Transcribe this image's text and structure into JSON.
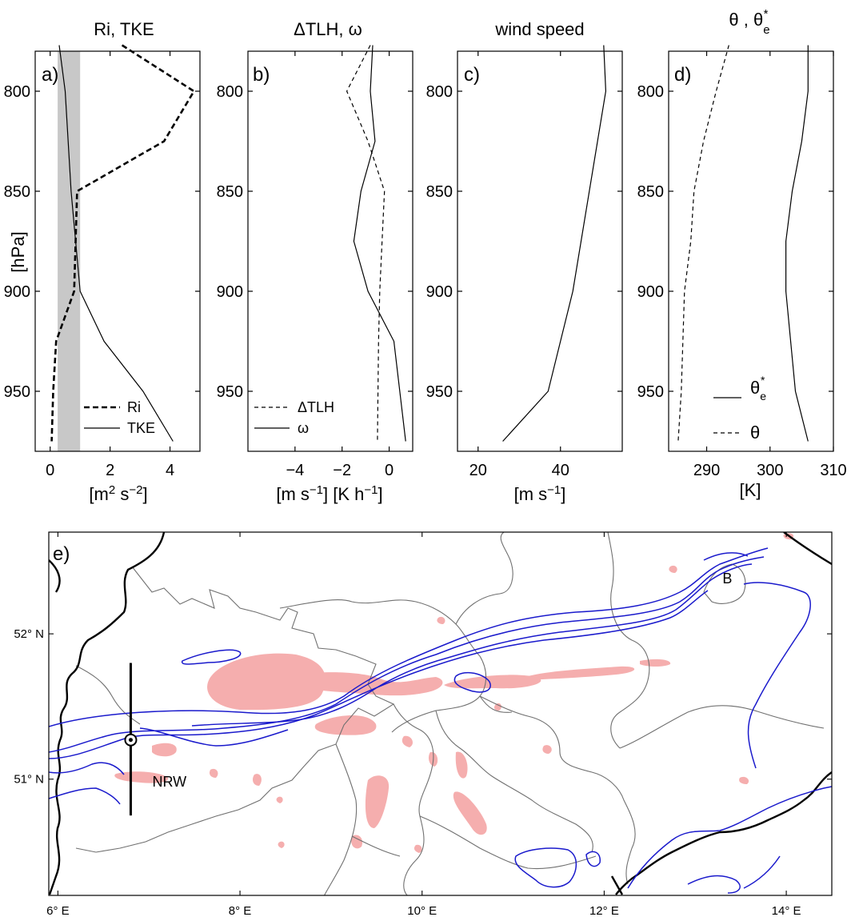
{
  "chart_data": [
    {
      "id": "a",
      "type": "line",
      "panel_label": "a)",
      "title": "Ri, TKE",
      "ylabel": "[hPa]",
      "xlabel_unit": "[m2 s-2]",
      "xlim": [
        -0.5,
        5
      ],
      "ylim": [
        780,
        980
      ],
      "y_axis_inverted": true,
      "xticks": [
        0,
        2,
        4
      ],
      "yticks": [
        800,
        850,
        900,
        950
      ],
      "shaded_band_x": [
        0.25,
        1.0
      ],
      "shaded_band_color": "#c8c8c8",
      "series": [
        {
          "name": "Ri",
          "style": "dashed-bold",
          "x": [
            2.4,
            4.8,
            3.8,
            0.9,
            0.8,
            0.2,
            0.1,
            0.05
          ],
          "y": [
            777,
            800,
            825,
            850,
            900,
            925,
            950,
            975
          ]
        },
        {
          "name": "TKE",
          "style": "solid",
          "x": [
            0.3,
            0.5,
            0.6,
            0.7,
            1.0,
            1.8,
            3.1,
            4.1
          ],
          "y": [
            777,
            800,
            825,
            850,
            900,
            925,
            950,
            975
          ]
        }
      ]
    },
    {
      "id": "b",
      "type": "line",
      "panel_label": "b)",
      "title": "ΔTLH, ω",
      "xlabel_unit": "[m s-1] [K h-1]",
      "xlim": [
        -6,
        1
      ],
      "ylim": [
        780,
        980
      ],
      "y_axis_inverted": true,
      "xticks": [
        -4,
        -2,
        0
      ],
      "xticklabels": [
        "−4",
        "−2",
        "0"
      ],
      "yticks": [
        800,
        850,
        900,
        950
      ],
      "series": [
        {
          "name": "ΔTLH",
          "style": "dashed",
          "x": [
            -0.8,
            -1.8,
            -0.9,
            -0.2,
            -0.3,
            -0.4,
            -0.45,
            -0.5
          ],
          "y": [
            777,
            800,
            825,
            850,
            875,
            900,
            925,
            975
          ]
        },
        {
          "name": "ω",
          "style": "solid",
          "x": [
            -0.7,
            -0.8,
            -0.6,
            -1.2,
            -1.5,
            -0.9,
            0.2,
            0.7
          ],
          "y": [
            777,
            800,
            825,
            850,
            875,
            900,
            925,
            975
          ]
        }
      ]
    },
    {
      "id": "c",
      "type": "line",
      "panel_label": "c)",
      "title": "wind speed",
      "xlabel_unit": "[m s-1]",
      "xlim": [
        15,
        55
      ],
      "ylim": [
        780,
        980
      ],
      "y_axis_inverted": true,
      "xticks": [
        20,
        40
      ],
      "yticks": [
        800,
        850,
        900,
        950
      ],
      "series": [
        {
          "name": "wind speed",
          "style": "solid",
          "x": [
            50.5,
            51,
            49,
            47,
            45,
            43,
            37,
            26
          ],
          "y": [
            777,
            800,
            825,
            850,
            875,
            900,
            950,
            975
          ]
        }
      ]
    },
    {
      "id": "d",
      "type": "line",
      "panel_label": "d)",
      "title": "θ , θe*",
      "xlabel_unit": "[K]",
      "xlim": [
        284,
        310
      ],
      "ylim": [
        780,
        980
      ],
      "y_axis_inverted": true,
      "xticks": [
        290,
        300,
        310
      ],
      "yticks": [
        800,
        850,
        900,
        950
      ],
      "series": [
        {
          "name": "θe*",
          "style": "solid",
          "x": [
            306,
            306,
            305,
            303.5,
            302.5,
            302.5,
            304,
            306
          ],
          "y": [
            777,
            800,
            825,
            850,
            875,
            900,
            950,
            975
          ]
        },
        {
          "name": "θ",
          "style": "dashed",
          "x": [
            293.5,
            291.5,
            289.5,
            288,
            287.5,
            286.5,
            286,
            285.5
          ],
          "y": [
            777,
            800,
            825,
            850,
            875,
            900,
            950,
            975
          ]
        }
      ]
    }
  ],
  "map": {
    "panel_label": "e)",
    "xlim": [
      5.9,
      14.5
    ],
    "ylim": [
      50.2,
      52.7
    ],
    "xticks": [
      {
        "value": 6,
        "label": "6° E"
      },
      {
        "value": 8,
        "label": "8° E"
      },
      {
        "value": 10,
        "label": "10° E"
      },
      {
        "value": 12,
        "label": "12° E"
      },
      {
        "value": 14,
        "label": "14° E"
      }
    ],
    "yticks": [
      {
        "value": 52,
        "label": "52° N"
      },
      {
        "value": 51,
        "label": "51° N"
      }
    ],
    "labels": {
      "nrw": "NRW",
      "berlin": "B"
    },
    "colors": {
      "precip": "#f5aeae",
      "contour": "#1a1acc",
      "state_border": "#707070",
      "country_border": "#000000"
    },
    "transect": {
      "lon": 6.8,
      "lat_from": 50.75,
      "lat_to": 51.8
    },
    "marker": {
      "lon": 6.8,
      "lat": 51.27
    }
  }
}
